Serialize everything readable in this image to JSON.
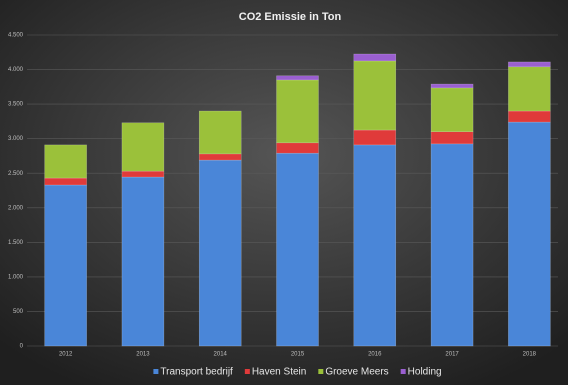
{
  "chart_data": {
    "type": "stacked_bar",
    "title": "CO2 Emissie in Ton",
    "categories": [
      "2012",
      "2013",
      "2014",
      "2015",
      "2016",
      "2017",
      "2018"
    ],
    "series": [
      {
        "name": "Transport bedrijf",
        "color": "#4a86d8",
        "values": [
          2330,
          2445,
          2690,
          2790,
          2910,
          2925,
          3240
        ]
      },
      {
        "name": "Haven Stein",
        "color": "#e03a3a",
        "values": [
          100,
          85,
          90,
          150,
          215,
          175,
          160
        ]
      },
      {
        "name": "Groeve Meers",
        "color": "#9bc13a",
        "values": [
          480,
          700,
          620,
          910,
          1000,
          635,
          640
        ]
      },
      {
        "name": "Holding",
        "color": "#9a5fd0",
        "values": [
          0,
          0,
          0,
          60,
          100,
          55,
          70
        ]
      }
    ],
    "ylim": [
      0,
      4500
    ],
    "yticks": [
      0,
      500,
      {
        "value": 1000,
        "label": "1.000"
      },
      {
        "value": 1500,
        "label": "1.500"
      },
      {
        "value": 2000,
        "label": "2.000"
      },
      {
        "value": 2500,
        "label": "2.500"
      },
      {
        "value": 3000,
        "label": "3.000"
      },
      {
        "value": 3500,
        "label": "3.500"
      },
      {
        "value": 4000,
        "label": "4.000"
      },
      {
        "value": 4500,
        "label": "4.500"
      }
    ],
    "grid": true,
    "legend": "bottom"
  }
}
